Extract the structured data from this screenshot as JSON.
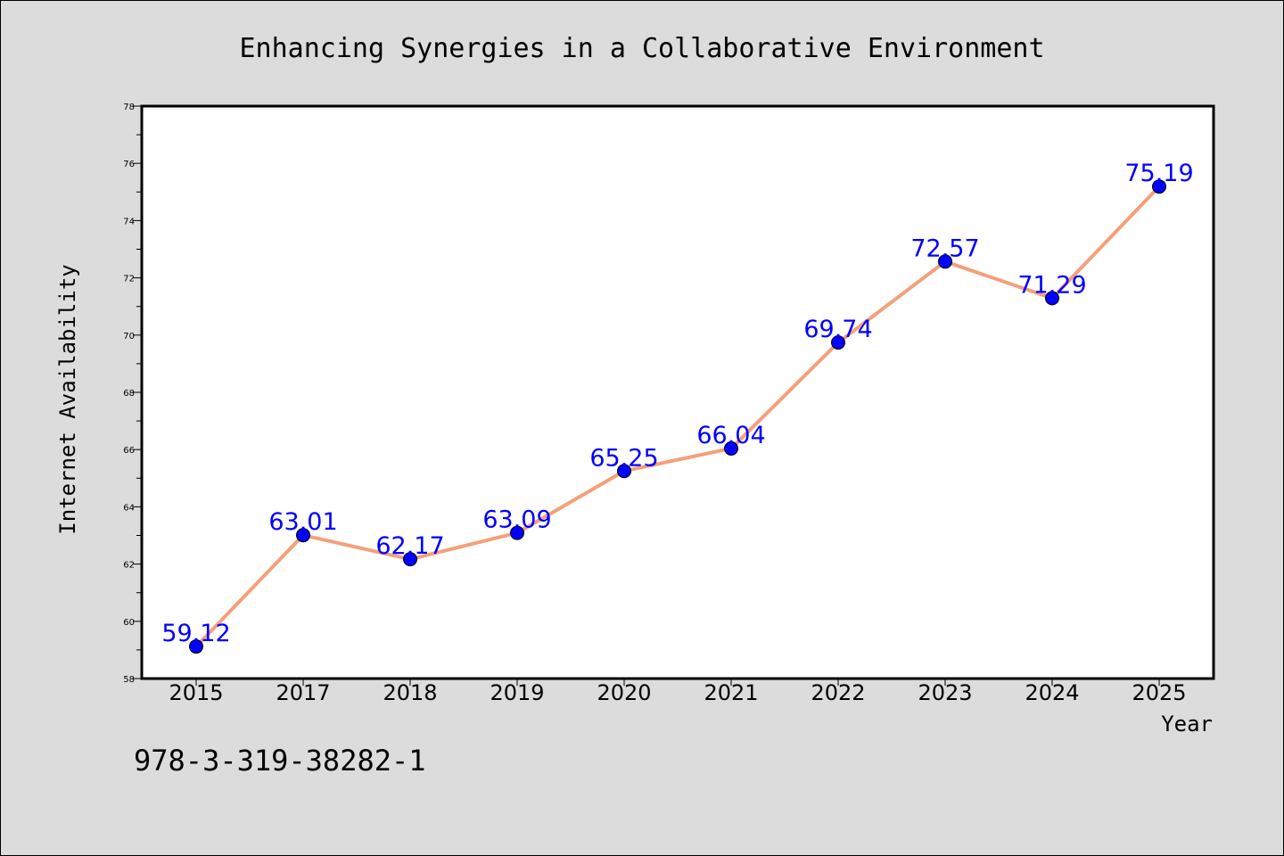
{
  "chart_data": {
    "type": "line",
    "title": "Enhancing Synergies in a Collaborative Environment",
    "xlabel": "Year",
    "ylabel": "Internet Availability",
    "categories": [
      "2015",
      "2017",
      "2018",
      "2019",
      "2020",
      "2021",
      "2022",
      "2023",
      "2024",
      "2025"
    ],
    "series": [
      {
        "values": [
          59.12,
          63.01,
          62.17,
          63.09,
          65.25,
          66.04,
          69.74,
          72.57,
          71.29,
          75.19
        ],
        "data_labels": [
          "59.12",
          "63.01",
          "62.17",
          "63.09",
          "65.25",
          "66.04",
          "69.74",
          "72.57",
          "71.29",
          "75.19"
        ]
      }
    ],
    "ylim": [
      58,
      78
    ],
    "yticks": [
      58,
      60,
      62,
      64,
      66,
      68,
      70,
      72,
      74,
      76,
      78
    ],
    "grid": false,
    "legend": "none",
    "colors": {
      "line": "#f4a07a",
      "marker": "#0000ff",
      "data_label": "#0000ff",
      "background": "#dcdcdc",
      "plot_area": "#ffffff"
    }
  },
  "caption": "978-3-319-38282-1"
}
